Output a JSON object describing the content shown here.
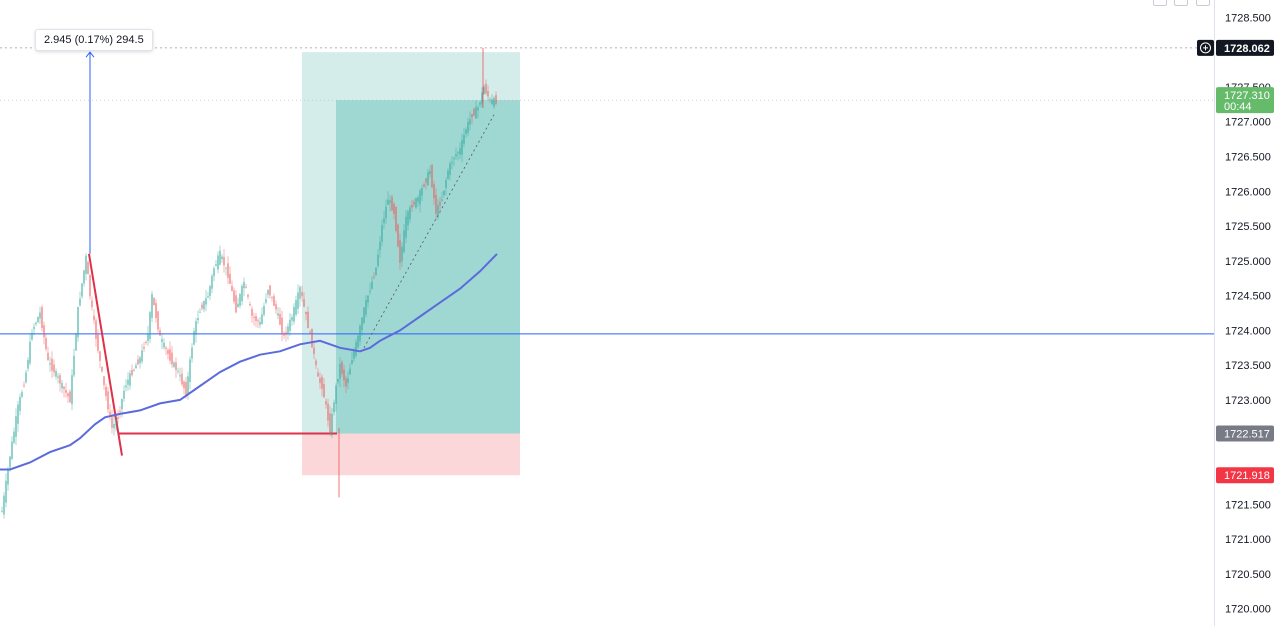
{
  "chart_data": {
    "type": "candlestick",
    "y_range": [
      1719.75,
      1728.75
    ],
    "y_ticks": [
      "1728.500",
      "1727.500",
      "1727.000",
      "1726.500",
      "1726.000",
      "1725.500",
      "1725.000",
      "1724.500",
      "1724.000",
      "1723.500",
      "1723.000",
      "1721.500",
      "1721.000",
      "1720.500",
      "1720.000"
    ],
    "price_scale_tags": [
      {
        "label": "1728.062",
        "value": 1728.062,
        "kind": "crosshair",
        "bg": "#131722",
        "fg": "#ffffff"
      },
      {
        "label": "1727.310",
        "sub": "00:44",
        "value": 1727.31,
        "kind": "last",
        "bg": "#66bb6a",
        "fg": "#ffffff"
      },
      {
        "label": "1722.517",
        "value": 1722.517,
        "kind": "entry",
        "bg": "#787b86",
        "fg": "#ffffff"
      },
      {
        "label": "1721.918",
        "value": 1721.918,
        "kind": "stop",
        "bg": "#f23645",
        "fg": "#ffffff"
      }
    ],
    "measure_label": "2.945 (0.17%) 294.5",
    "horizontal_line": {
      "value": 1723.95,
      "color": "#2962ff"
    },
    "long_position": {
      "entry": 1722.517,
      "target": 1727.31,
      "target_outer": 1728.0,
      "stop": 1721.918,
      "profit_color": "#26a69a",
      "loss_color": "#f23645"
    },
    "moving_average": {
      "color": "#5b6bdc",
      "x": [
        0,
        10,
        30,
        50,
        70,
        80,
        95,
        105,
        120,
        140,
        160,
        180,
        200,
        220,
        240,
        260,
        280,
        300,
        320,
        340,
        360,
        370,
        380,
        400,
        420,
        440,
        460,
        480,
        497
      ],
      "y": [
        1722.0,
        1722.0,
        1722.1,
        1722.25,
        1722.35,
        1722.45,
        1722.65,
        1722.75,
        1722.8,
        1722.85,
        1722.95,
        1723.0,
        1723.2,
        1723.4,
        1723.55,
        1723.65,
        1723.7,
        1723.8,
        1723.85,
        1723.75,
        1723.7,
        1723.75,
        1723.85,
        1724.0,
        1724.2,
        1724.4,
        1724.6,
        1724.85,
        1725.1
      ]
    },
    "price_path": {
      "x": [
        2,
        10,
        18,
        25,
        32,
        40,
        48,
        55,
        62,
        70,
        78,
        86,
        90,
        96,
        104,
        112,
        118,
        125,
        132,
        140,
        148,
        152,
        160,
        170,
        178,
        186,
        194,
        200,
        208,
        214,
        220,
        228,
        236,
        244,
        252,
        260,
        268,
        276,
        284,
        292,
        300,
        306,
        312,
        318,
        322,
        326,
        330,
        335,
        340,
        346,
        352,
        358,
        364,
        370,
        376,
        382,
        388,
        394,
        400,
        406,
        412,
        418,
        424,
        430,
        436,
        442,
        448,
        454,
        460,
        466,
        472,
        478,
        484,
        490,
        497
      ],
      "y": [
        1721.4,
        1722.2,
        1722.9,
        1723.3,
        1724.0,
        1724.25,
        1723.55,
        1723.4,
        1723.2,
        1723.0,
        1724.3,
        1725.05,
        1724.5,
        1723.9,
        1723.2,
        1722.6,
        1722.75,
        1723.2,
        1723.4,
        1723.6,
        1723.95,
        1724.5,
        1723.9,
        1723.6,
        1723.4,
        1723.1,
        1724.0,
        1724.3,
        1724.5,
        1724.9,
        1725.1,
        1724.8,
        1724.3,
        1724.7,
        1724.2,
        1724.1,
        1724.6,
        1724.3,
        1723.9,
        1724.2,
        1724.6,
        1724.2,
        1723.8,
        1723.3,
        1723.2,
        1722.9,
        1722.55,
        1723.1,
        1723.5,
        1723.2,
        1723.6,
        1723.9,
        1724.3,
        1724.6,
        1724.9,
        1725.5,
        1725.9,
        1725.7,
        1725.0,
        1725.6,
        1725.8,
        1725.9,
        1726.1,
        1726.3,
        1725.7,
        1725.9,
        1726.3,
        1726.5,
        1726.6,
        1726.9,
        1727.1,
        1727.2,
        1727.5,
        1727.3,
        1727.3
      ]
    },
    "candle_colors": {
      "up": "#26a69a",
      "down": "#ef5350"
    }
  }
}
